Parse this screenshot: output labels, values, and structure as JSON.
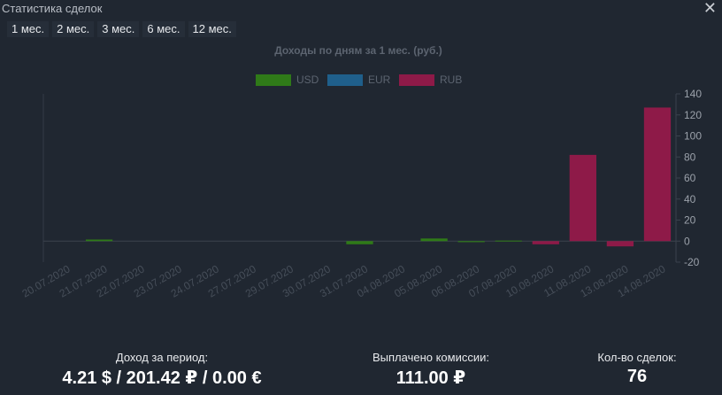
{
  "window": {
    "title": "Статистика сделок",
    "close_icon": "close-icon"
  },
  "periods": [
    "1 мес.",
    "2 мес.",
    "3 мес.",
    "6 мес.",
    "12 мес."
  ],
  "colors": {
    "usd": "#2f7a18",
    "eur": "#1f5f8b",
    "rub": "#8e1a48",
    "axis_text": "#9ba1aa",
    "title_text": "#5c6470"
  },
  "chart_data": {
    "type": "bar",
    "title": "Доходы по дням за 1 мес. (руб.)",
    "categories": [
      "20.07.2020",
      "21.07.2020",
      "22.07.2020",
      "23.07.2020",
      "24.07.2020",
      "27.07.2020",
      "29.07.2020",
      "30.07.2020",
      "31.07.2020",
      "04.08.2020",
      "05.08.2020",
      "06.08.2020",
      "07.08.2020",
      "10.08.2020",
      "11.08.2020",
      "13.08.2020",
      "14.08.2020"
    ],
    "series": [
      {
        "name": "USD",
        "values": [
          0,
          1.5,
          0,
          0,
          0,
          0,
          0,
          0,
          -3,
          0,
          2.5,
          -1,
          0.5,
          0,
          0,
          0,
          0
        ]
      },
      {
        "name": "EUR",
        "values": [
          0,
          0,
          0,
          0,
          0,
          0,
          0,
          0,
          0,
          0,
          0,
          0,
          0,
          0,
          0,
          0,
          0
        ]
      },
      {
        "name": "RUB",
        "values": [
          0,
          0,
          0,
          0,
          0,
          0,
          0,
          0,
          0,
          0,
          0,
          0,
          0,
          -3,
          82,
          -5,
          127
        ]
      }
    ],
    "ylim": [
      -20,
      140
    ],
    "yticks": [
      -20,
      0,
      20,
      40,
      60,
      80,
      100,
      120,
      140
    ],
    "legend_position": "top-center",
    "y_axis_side": "right",
    "grid": false
  },
  "footer": {
    "income_label": "Доход за период:",
    "income_value": "4.21 $ / 201.42 ₽ / 0.00 €",
    "commission_label": "Выплачено комиссии:",
    "commission_value": "111.00 ₽",
    "deals_label": "Кол-во сделок:",
    "deals_value": "76"
  }
}
